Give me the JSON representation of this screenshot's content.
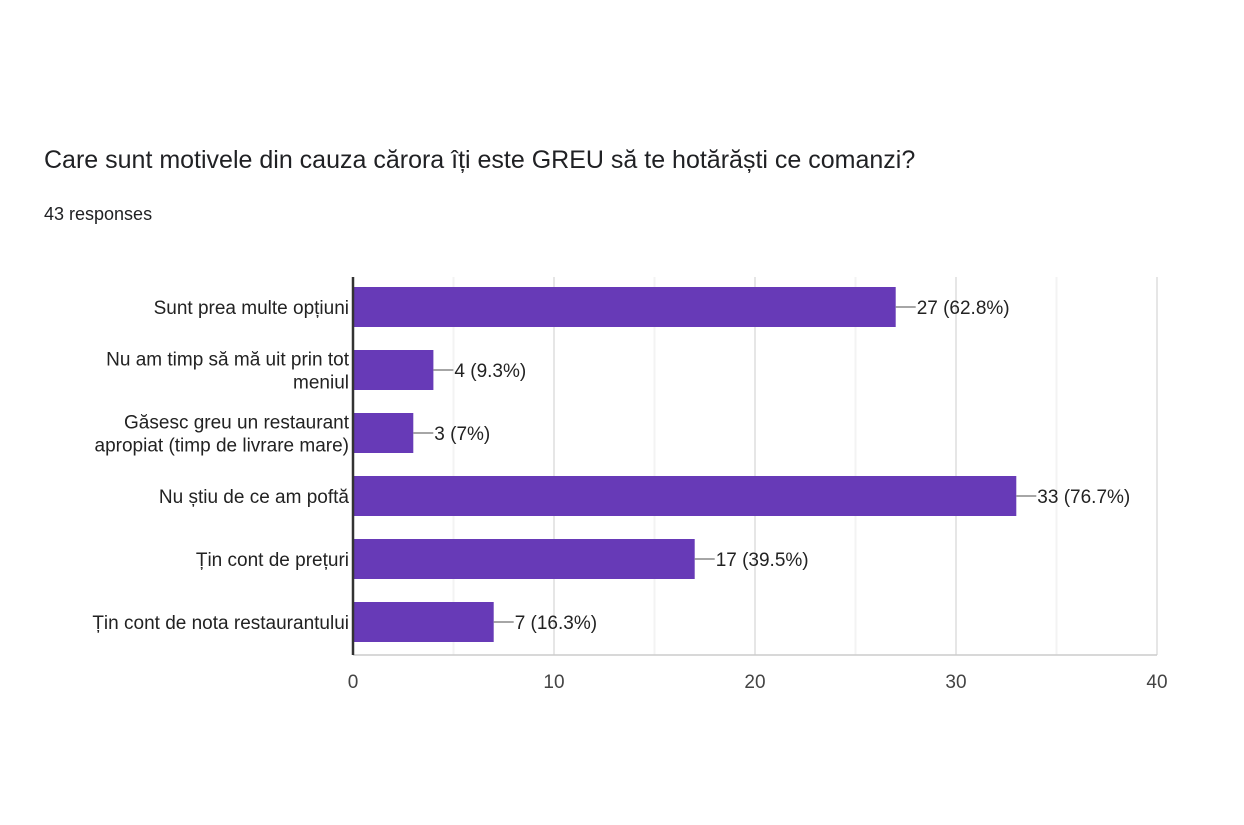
{
  "question": {
    "title": "Care sunt motivele din cauza cărora îți este GREU să te hotărăști ce comanzi?",
    "responses": "43 responses"
  },
  "colors": {
    "bar": "#673ab7",
    "grid": "#e6e6e6",
    "axis": "#333333",
    "leader": "#888888"
  },
  "chart_data": {
    "type": "bar",
    "orientation": "horizontal",
    "categories": [
      [
        "Sunt prea multe opțiuni"
      ],
      [
        "Nu am timp să mă uit prin tot",
        "meniul"
      ],
      [
        "Găsesc greu un restaurant",
        "apropiat (timp de livrare mare)"
      ],
      [
        "Nu știu de ce am poftă"
      ],
      [
        "Țin cont de prețuri"
      ],
      [
        "Țin cont de nota restaurantului"
      ]
    ],
    "values": [
      27,
      4,
      3,
      33,
      17,
      7
    ],
    "data_labels": [
      "27 (62.8%)",
      "4 (9.3%)",
      "3 (7%)",
      "33 (76.7%)",
      "17 (39.5%)",
      "7 (16.3%)"
    ],
    "xlim": [
      0,
      40
    ],
    "xticks": [
      0,
      10,
      20,
      30,
      40
    ],
    "grid": true,
    "legend": "none"
  }
}
